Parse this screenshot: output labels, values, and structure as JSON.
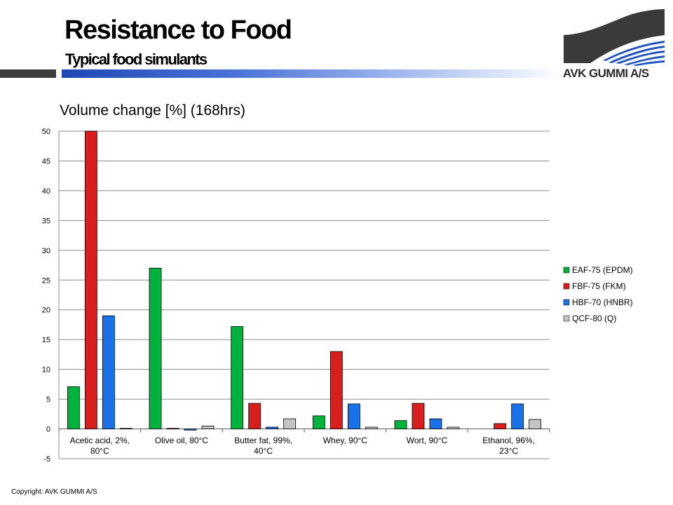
{
  "header": {
    "title": "Resistance to Food",
    "subtitle": "Typical food simulants",
    "logo_text": "AVK GUMMI A/S"
  },
  "footer": {
    "copyright": "Copyright: AVK GUMMI A/S"
  },
  "chart_data": {
    "type": "bar",
    "title": "Volume change [%] (168hrs)",
    "xlabel": "",
    "ylabel": "",
    "ylim": [
      -5,
      50
    ],
    "yticks": [
      -5,
      0,
      5,
      10,
      15,
      20,
      25,
      30,
      35,
      40,
      45,
      50
    ],
    "grid": true,
    "legend_position": "right",
    "categories": [
      [
        "Acetic acid, 2%,",
        "80°C"
      ],
      [
        "Olive oil, 80°C"
      ],
      [
        "Butter fat, 99%,",
        "40°C"
      ],
      [
        "Whey, 90°C"
      ],
      [
        "Wort, 90°C"
      ],
      [
        "Ethanol, 96%,",
        "23°C"
      ]
    ],
    "series": [
      {
        "name": "EAF-75 (EPDM)",
        "color": "#00b33c",
        "values": [
          7.1,
          27.0,
          17.2,
          2.2,
          1.4,
          null
        ]
      },
      {
        "name": "FBF-75 (FKM)",
        "color": "#d91e1e",
        "values": [
          50.0,
          0.1,
          4.3,
          13.0,
          4.3,
          0.9
        ]
      },
      {
        "name": "HBF-70 (HNBR)",
        "color": "#1a72e8",
        "values": [
          19.0,
          -0.2,
          0.3,
          4.2,
          1.7,
          4.2
        ]
      },
      {
        "name": "QCF-80 (Q)",
        "color": "#c4c4c4",
        "values": [
          0.1,
          0.5,
          1.7,
          0.3,
          0.3,
          1.6
        ]
      }
    ]
  }
}
